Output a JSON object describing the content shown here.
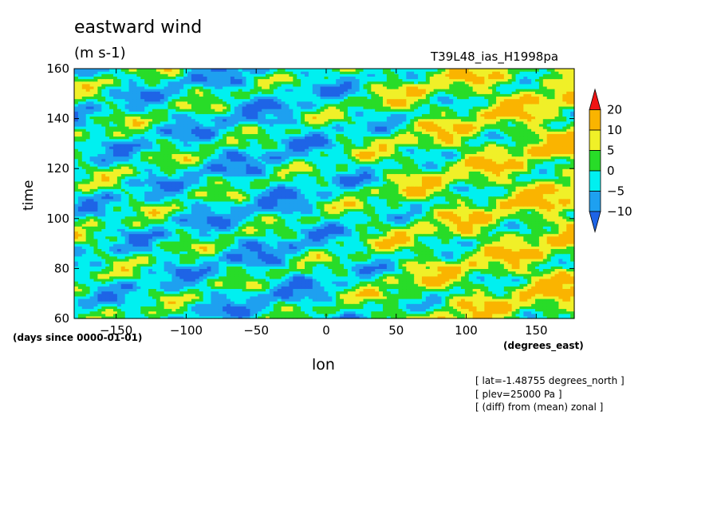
{
  "chart_data": {
    "type": "heatmap",
    "title": "eastward wind",
    "units": "(m s-1)",
    "run_id": "T39L48_ias_H1998pa",
    "xlabel": "lon",
    "x_units": "(degrees_east)",
    "ylabel": "time",
    "y_units": "(days since 0000-01-01)",
    "xlim": [
      -180,
      177.1875
    ],
    "ylim": [
      60,
      160
    ],
    "x_ticks": [
      -150,
      -100,
      -50,
      0,
      50,
      100,
      150
    ],
    "y_ticks": [
      60,
      80,
      100,
      120,
      140,
      160
    ],
    "colorbar": {
      "levels": [
        -10,
        -5,
        0,
        5,
        10,
        20
      ],
      "tick_labels": [
        "20",
        "10",
        "5",
        "0",
        "-5",
        "-10"
      ],
      "colors": [
        "#1e64e6",
        "#1ea0f0",
        "#00f0f0",
        "#28dc28",
        "#f0f028",
        "#fab400",
        "#f01414"
      ],
      "extend": "both"
    },
    "pattern": {
      "trend_east": [
        {
          "lon": -180,
          "wind": -1.2
        },
        {
          "lon": -100,
          "wind": -2.5
        },
        {
          "lon": -30,
          "wind": -4.0
        },
        {
          "lon": 20,
          "wind": -1.0
        },
        {
          "lon": 60,
          "wind": 3.0
        },
        {
          "lon": 120,
          "wind": 5.0
        },
        {
          "lon": 177.1875,
          "wind": 7.0
        }
      ]
    },
    "annotations": [
      "[ lat=-1.48755 degrees_north ]",
      "[ plev=25000 Pa ]",
      "[ (diff) from (mean) zonal ]"
    ]
  }
}
